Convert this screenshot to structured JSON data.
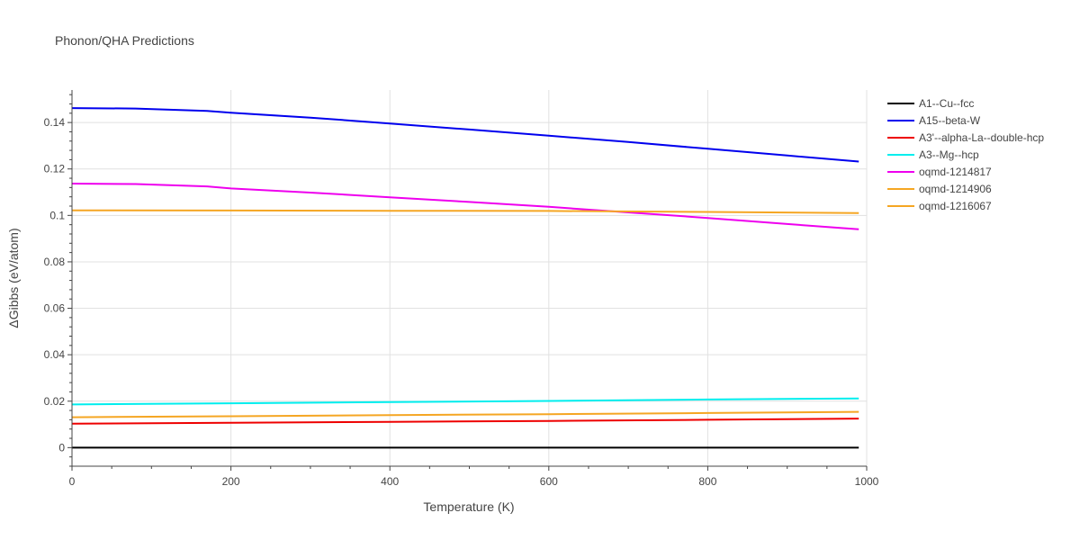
{
  "chart_data": {
    "type": "line",
    "title": "Phonon/QHA Predictions",
    "xlabel": "Temperature (K)",
    "ylabel": "ΔGibbs (eV/atom)",
    "xlim": [
      0,
      1000
    ],
    "ylim": [
      -0.008,
      0.154
    ],
    "x_ticks": [
      0,
      200,
      400,
      600,
      800,
      1000
    ],
    "x_tick_labels": [
      "0",
      "200",
      "400",
      "600",
      "800",
      "1000"
    ],
    "y_ticks": [
      0,
      0.02,
      0.04,
      0.06,
      0.08,
      0.1,
      0.12,
      0.14
    ],
    "y_tick_labels": [
      "0",
      "0.02",
      "0.04",
      "0.06",
      "0.08",
      "0.1",
      "0.12",
      "0.14"
    ],
    "grid": true,
    "legend_position": "right",
    "series": [
      {
        "name": "A1--Cu--fcc",
        "color": "#000000",
        "x": [
          0,
          100,
          200,
          300,
          400,
          500,
          600,
          700,
          800,
          900,
          990
        ],
        "y": [
          0,
          0,
          0,
          0,
          0,
          0,
          0,
          0,
          0,
          0,
          0
        ]
      },
      {
        "name": "A15--beta-W",
        "color": "#0000ee",
        "x": [
          0,
          80,
          170,
          200,
          300,
          400,
          500,
          600,
          700,
          800,
          900,
          990
        ],
        "y": [
          0.1462,
          0.146,
          0.145,
          0.1442,
          0.1421,
          0.1396,
          0.137,
          0.1343,
          0.1316,
          0.1287,
          0.1258,
          0.1232
        ]
      },
      {
        "name": "A3'--alpha-La--double-hcp",
        "color": "#ee0000",
        "x": [
          0,
          200,
          400,
          600,
          800,
          990
        ],
        "y": [
          0.0103,
          0.0107,
          0.0111,
          0.0115,
          0.012,
          0.0125
        ]
      },
      {
        "name": "A3--Mg--hcp",
        "color": "#00eeee",
        "x": [
          0,
          200,
          400,
          600,
          800,
          990
        ],
        "y": [
          0.0186,
          0.0191,
          0.0196,
          0.0201,
          0.0207,
          0.0212
        ]
      },
      {
        "name": "oqmd-1214817",
        "color": "#ee00ee",
        "x": [
          0,
          80,
          170,
          200,
          300,
          400,
          500,
          600,
          700,
          800,
          900,
          990
        ],
        "y": [
          0.1137,
          0.1135,
          0.1125,
          0.1116,
          0.1098,
          0.1078,
          0.1058,
          0.1037,
          0.1013,
          0.0989,
          0.0963,
          0.094
        ]
      },
      {
        "name": "oqmd-1214906",
        "color": "#f5a623",
        "x": [
          0,
          200,
          400,
          600,
          800,
          990
        ],
        "y": [
          0.0131,
          0.0135,
          0.014,
          0.0144,
          0.0149,
          0.0154
        ]
      },
      {
        "name": "oqmd-1216067",
        "color": "#f5a623",
        "x": [
          0,
          200,
          400,
          600,
          800,
          990
        ],
        "y": [
          0.1022,
          0.1021,
          0.102,
          0.1019,
          0.1015,
          0.101
        ]
      }
    ]
  }
}
